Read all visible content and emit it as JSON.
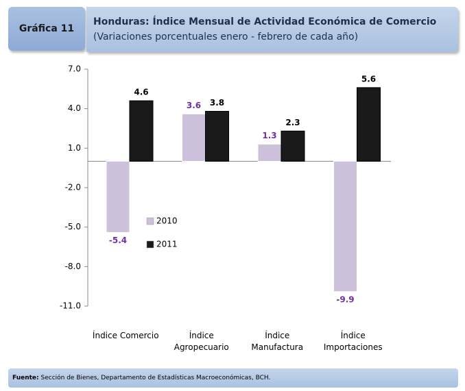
{
  "header": {
    "label": "Gráfica 11"
  },
  "chart_data": {
    "type": "bar",
    "title": "Honduras: Índice Mensual de Actividad Económica de Comercio",
    "subtitle": "(Variaciones porcentuales enero - febrero de cada año)",
    "categories": [
      "Índice Comercio",
      "Índice\nAgropecuario",
      "Índice\nManufactura",
      "Índice\nImportaciones"
    ],
    "series": [
      {
        "name": "2010",
        "color": "#ccc0da",
        "label_color": "#7030a0",
        "values": [
          -5.4,
          3.6,
          1.3,
          -9.9
        ]
      },
      {
        "name": "2011",
        "color": "#1a1a1a",
        "label_color": "#000000",
        "values": [
          4.6,
          3.8,
          2.3,
          5.6
        ]
      }
    ],
    "ylim": [
      -11,
      7
    ],
    "yticks": [
      {
        "value": 7,
        "label": "7.0"
      },
      {
        "value": 4,
        "label": "4.0"
      },
      {
        "value": 1,
        "label": "1.0"
      },
      {
        "value": -2,
        "label": "-2.0"
      },
      {
        "value": -5,
        "label": "-5.0"
      },
      {
        "value": -8,
        "label": "-8.0"
      },
      {
        "value": -11,
        "label": "-11.0"
      }
    ],
    "grid": false
  },
  "footer": {
    "label": "Fuente:",
    "text": "Sección de Bienes, Departamento de Estadísticas Macroeconómicas, BCH."
  }
}
